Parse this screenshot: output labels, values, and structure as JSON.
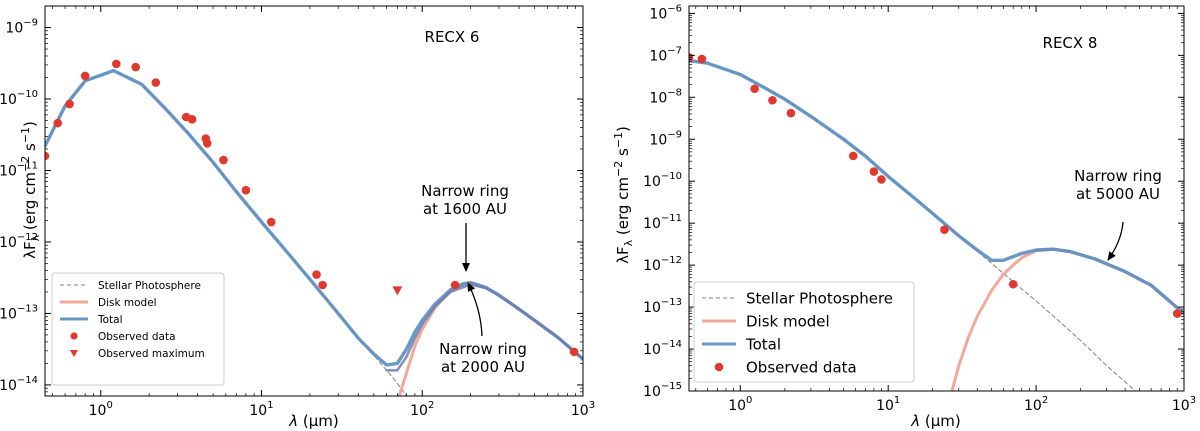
{
  "chart_data": [
    {
      "type": "line",
      "title": "RECX 6",
      "xlabel": "λ (μm)",
      "ylabel": "λF_λ (erg cm⁻² s⁻¹)",
      "xscale": "log",
      "yscale": "log",
      "xlim": [
        0.45,
        1000
      ],
      "ylim": [
        7e-15,
        2e-09
      ],
      "xticks": [
        {
          "value": 1,
          "base": "10",
          "exp": "0"
        },
        {
          "value": 10,
          "base": "10",
          "exp": "1"
        },
        {
          "value": 100,
          "base": "10",
          "exp": "2"
        },
        {
          "value": 1000,
          "base": "10",
          "exp": "3"
        }
      ],
      "yticks": [
        {
          "value": 1e-14,
          "base": "10",
          "exp": "−14"
        },
        {
          "value": 1e-13,
          "base": "10",
          "exp": "−13"
        },
        {
          "value": 1e-12,
          "base": "10",
          "exp": "−12"
        },
        {
          "value": 1e-11,
          "base": "10",
          "exp": "−11"
        },
        {
          "value": 1e-10,
          "base": "10",
          "exp": "−10"
        },
        {
          "value": 1e-09,
          "base": "10",
          "exp": "−9"
        }
      ],
      "legend_position": "lower-left",
      "series": [
        {
          "name": "Stellar Photosphere",
          "kind": "dashed-line",
          "color": "#808080",
          "x": [
            0.45,
            0.6,
            0.8,
            1.2,
            1.8,
            2.5,
            3.5,
            5,
            7,
            10,
            15,
            20,
            30,
            40,
            50,
            60,
            70,
            80
          ],
          "y": [
            2.2e-11,
            8e-11,
            1.8e-10,
            2.5e-10,
            1.6e-10,
            7.5e-11,
            3.3e-11,
            1.3e-11,
            5e-12,
            1.9e-12,
            6.5e-13,
            3e-13,
            1e-13,
            4.5e-14,
            2.6e-14,
            1.6e-14,
            1.05e-14,
            7e-15
          ]
        },
        {
          "name": "Disk model",
          "kind": "line",
          "color": "#f0a090",
          "x": [
            72,
            80,
            90,
            100,
            120,
            150,
            180,
            200,
            250,
            300,
            400,
            500,
            700,
            1000
          ],
          "y": [
            7e-15,
            1.5e-14,
            3.5e-14,
            6e-14,
            1.2e-13,
            2.1e-13,
            2.6e-13,
            2.7e-13,
            2.3e-13,
            1.8e-13,
            1.15e-13,
            8e-14,
            4.6e-14,
            2.3e-14
          ]
        },
        {
          "name": "Total",
          "kind": "line",
          "color": "#5b8dc0",
          "x": [
            0.45,
            0.6,
            0.8,
            1.2,
            1.8,
            2.5,
            3.5,
            5,
            7,
            10,
            15,
            20,
            30,
            40,
            50,
            60,
            70,
            80,
            90,
            100,
            120,
            150,
            180,
            200,
            250,
            300,
            400,
            500,
            700,
            1000
          ],
          "y": [
            2.2e-11,
            8e-11,
            1.8e-10,
            2.5e-10,
            1.6e-10,
            7.5e-11,
            3.3e-11,
            1.3e-11,
            5e-12,
            1.9e-12,
            6.5e-13,
            3e-13,
            1e-13,
            4.5e-14,
            2.7e-14,
            1.9e-14,
            2e-14,
            3.2e-14,
            5.5e-14,
            8e-14,
            1.35e-13,
            2.15e-13,
            2.6e-13,
            2.7e-13,
            2.3e-13,
            1.8e-13,
            1.15e-13,
            8e-14,
            4.6e-14,
            2.3e-14
          ]
        },
        {
          "name": "Total",
          "kind": "line-secondary",
          "color": "#6e7fb0",
          "x": [
            60,
            70,
            80,
            90,
            100,
            120,
            150,
            200,
            250,
            300,
            400,
            500,
            700,
            1000
          ],
          "y": [
            1.6e-14,
            1.6e-14,
            2.5e-14,
            4.5e-14,
            7e-14,
            1.25e-13,
            2e-13,
            2.55e-13,
            2.25e-13,
            1.8e-13,
            1.15e-13,
            8e-14,
            4.6e-14,
            2.3e-14
          ]
        },
        {
          "name": "Observed data",
          "kind": "points",
          "color": "#e03a2e",
          "x": [
            0.45,
            0.54,
            0.64,
            0.8,
            1.25,
            1.65,
            2.2,
            3.4,
            3.7,
            4.5,
            4.6,
            5.8,
            8,
            11.5,
            22,
            24,
            160,
            880
          ],
          "y": [
            1.6e-11,
            4.6e-11,
            8.5e-11,
            2.1e-10,
            3.1e-10,
            2.8e-10,
            1.7e-10,
            5.6e-11,
            5.2e-11,
            2.8e-11,
            2.4e-11,
            1.4e-11,
            5.3e-12,
            1.9e-12,
            3.5e-13,
            2.5e-13,
            2.5e-13,
            2.9e-14
          ]
        },
        {
          "name": "Observed maximum",
          "kind": "triangles",
          "color": "#e03a2e",
          "x": [
            70
          ],
          "y": [
            2.1e-13
          ]
        }
      ],
      "annotations": [
        {
          "lines": [
            "Narrow ring",
            "at 1600 AU"
          ],
          "x": 200,
          "y": 2.8e-13
        },
        {
          "lines": [
            "Narrow ring",
            "at 2000 AU"
          ],
          "x": 170,
          "y": 2.4e-13
        }
      ]
    },
    {
      "type": "line",
      "title": "RECX 8",
      "xlabel": "λ (μm)",
      "ylabel": "λF_λ (erg cm⁻² s⁻¹)",
      "xscale": "log",
      "yscale": "log",
      "xlim": [
        0.45,
        1000
      ],
      "ylim": [
        1e-15,
        1.5e-06
      ],
      "xticks": [
        {
          "value": 1,
          "base": "10",
          "exp": "0"
        },
        {
          "value": 10,
          "base": "10",
          "exp": "1"
        },
        {
          "value": 100,
          "base": "10",
          "exp": "2"
        },
        {
          "value": 1000,
          "base": "10",
          "exp": "3"
        }
      ],
      "yticks": [
        {
          "value": 1e-15,
          "base": "10",
          "exp": "−15"
        },
        {
          "value": 1e-14,
          "base": "10",
          "exp": "−14"
        },
        {
          "value": 1e-13,
          "base": "10",
          "exp": "−13"
        },
        {
          "value": 1e-12,
          "base": "10",
          "exp": "−12"
        },
        {
          "value": 1e-11,
          "base": "10",
          "exp": "−11"
        },
        {
          "value": 1e-10,
          "base": "10",
          "exp": "−10"
        },
        {
          "value": 1e-09,
          "base": "10",
          "exp": "−9"
        },
        {
          "value": 1e-08,
          "base": "10",
          "exp": "−8"
        },
        {
          "value": 1e-07,
          "base": "10",
          "exp": "−7"
        },
        {
          "value": 1e-06,
          "base": "10",
          "exp": "−6"
        }
      ],
      "legend_position": "lower-left",
      "series": [
        {
          "name": "Stellar Photosphere",
          "kind": "dashed-line",
          "color": "#808080",
          "x": [
            0.45,
            0.6,
            1,
            1.5,
            2,
            3,
            5,
            7,
            10,
            15,
            20,
            30,
            50,
            70,
            100,
            150,
            200,
            300,
            470
          ],
          "y": [
            7.5e-08,
            6.5e-08,
            3.5e-08,
            1.6e-08,
            9e-09,
            3.5e-09,
            1e-09,
            4e-10,
            1.3e-10,
            4e-11,
            1.7e-11,
            5e-12,
            1.1e-12,
            4e-13,
            1.4e-13,
            4e-14,
            1.6e-14,
            4e-15,
            1e-15
          ]
        },
        {
          "name": "Disk model",
          "kind": "line",
          "color": "#f0a090",
          "x": [
            27,
            30,
            35,
            40,
            50,
            60,
            70,
            80,
            100,
            130,
            170,
            250,
            400,
            600,
            1000
          ],
          "y": [
            1e-15,
            4e-15,
            2e-14,
            6e-14,
            2.5e-13,
            6e-13,
            1e-12,
            1.5e-12,
            2.2e-12,
            2.4e-12,
            2.1e-12,
            1.4e-12,
            7e-13,
            3.3e-13,
            7e-14
          ]
        },
        {
          "name": "Total",
          "kind": "line",
          "color": "#5b8dc0",
          "x": [
            0.45,
            0.6,
            1,
            1.5,
            2,
            3,
            5,
            7,
            10,
            15,
            20,
            30,
            40,
            50,
            60,
            70,
            80,
            100,
            130,
            170,
            250,
            400,
            600,
            1000
          ],
          "y": [
            7.5e-08,
            6.5e-08,
            3.5e-08,
            1.6e-08,
            9e-09,
            3.5e-09,
            1e-09,
            4e-10,
            1.3e-10,
            4e-11,
            1.7e-11,
            5e-12,
            2.3e-12,
            1.3e-12,
            1.3e-12,
            1.6e-12,
            1.9e-12,
            2.3e-12,
            2.4e-12,
            2.1e-12,
            1.4e-12,
            7e-13,
            3.3e-13,
            7e-14
          ]
        },
        {
          "name": "Observed data",
          "kind": "points",
          "color": "#e03a2e",
          "x": [
            0.45,
            0.55,
            1.25,
            1.65,
            2.2,
            5.8,
            8,
            9,
            24,
            70,
            900
          ],
          "y": [
            9e-08,
            8.2e-08,
            1.6e-08,
            8.5e-09,
            4.2e-09,
            4e-10,
            1.7e-10,
            1.1e-10,
            7e-12,
            3.5e-13,
            7e-14
          ]
        }
      ],
      "annotations": [
        {
          "lines": [
            "Narrow ring",
            "at 5000 AU"
          ],
          "x": 300,
          "y": 1.1e-12
        }
      ]
    }
  ]
}
